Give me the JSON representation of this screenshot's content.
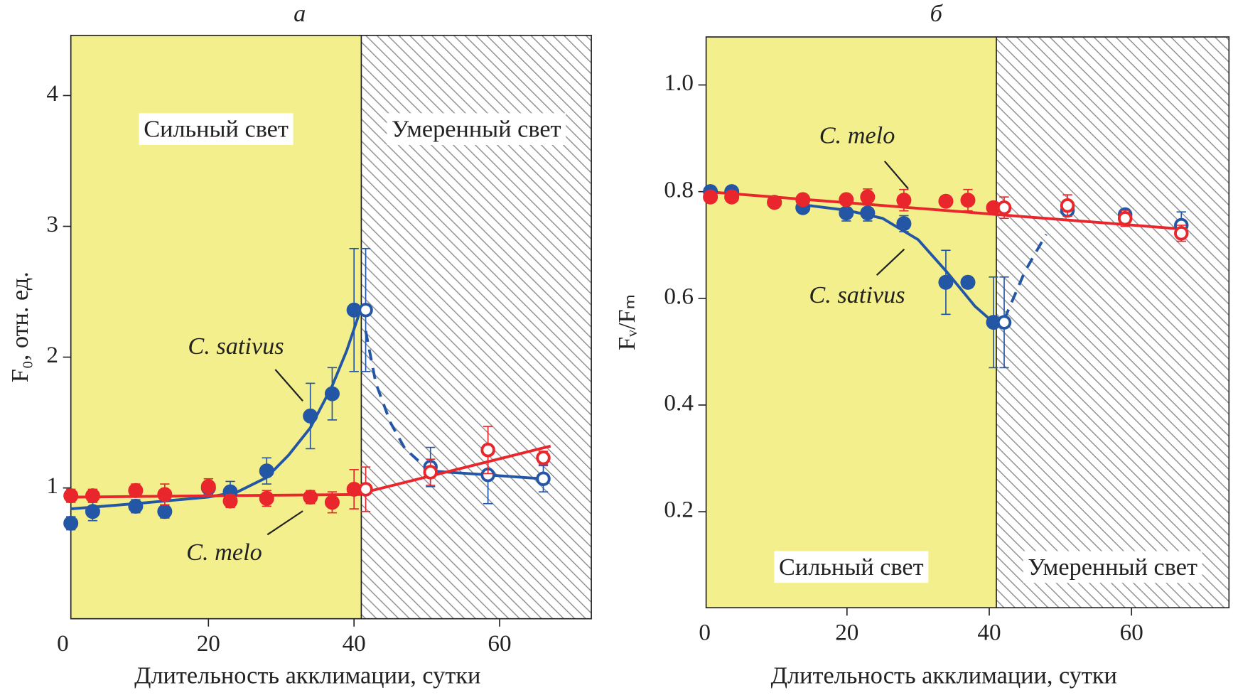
{
  "chart_data": [
    {
      "type": "scatter",
      "title": "а",
      "x_label": "Длительность акклимации, сутки",
      "y_label": "F₀, отн. ед.",
      "xlim": [
        1.1,
        72.6
      ],
      "ylim": [
        0,
        4.46
      ],
      "xticks": [
        0,
        20,
        40,
        60
      ],
      "yticks": [
        1,
        2,
        3,
        4
      ],
      "light_switch_x": 41,
      "regions": [
        "Сильный свет",
        "Умеренный свет"
      ],
      "region_color": "#f3ef8c",
      "series": [
        {
          "name": "C. sativus",
          "color": "#2456a6",
          "x": [
            1.1,
            4.1,
            10,
            14,
            20,
            23,
            28,
            34,
            37,
            40,
            41.6,
            50.5,
            58.4,
            66
          ],
          "values": [
            0.73,
            0.82,
            0.86,
            0.82,
            1.0,
            0.97,
            1.13,
            1.55,
            1.72,
            2.36,
            2.36,
            1.16,
            1.1,
            1.07
          ],
          "errors": [
            0.05,
            0.07,
            0.05,
            0.05,
            0.05,
            0.08,
            0.1,
            0.25,
            0.2,
            0.47,
            0.47,
            0.15,
            0.22,
            0.1
          ],
          "fits": [
            {
              "style": "solid",
              "x": [
                1.1,
                10,
                20,
                24,
                28,
                31,
                34,
                37,
                39,
                41
              ],
              "values": [
                0.84,
                0.88,
                0.93,
                0.97,
                1.08,
                1.25,
                1.46,
                1.78,
                2.05,
                2.38
              ]
            },
            {
              "style": "dashed",
              "x": [
                41.6,
                43,
                45,
                47,
                49
              ],
              "values": [
                2.2,
                1.8,
                1.5,
                1.3,
                1.2
              ]
            },
            {
              "style": "solid",
              "x": [
                50.5,
                66
              ],
              "values": [
                1.13,
                1.07
              ]
            }
          ]
        },
        {
          "name": "C. melo",
          "color": "#e8262b",
          "x": [
            1.1,
            4.1,
            10,
            14,
            20,
            23,
            28,
            34,
            37,
            40,
            41.6,
            50.5,
            58.4,
            66
          ],
          "values": [
            0.94,
            0.94,
            0.98,
            0.95,
            1.01,
            0.9,
            0.92,
            0.93,
            0.89,
            0.99,
            0.99,
            1.12,
            1.29,
            1.23
          ],
          "errors": [
            0.05,
            0.05,
            0.05,
            0.08,
            0.06,
            0.05,
            0.06,
            0.05,
            0.08,
            0.15,
            0.17,
            0.1,
            0.18,
            0.05
          ],
          "fits": [
            {
              "style": "solid",
              "x": [
                1.1,
                41
              ],
              "values": [
                0.93,
                0.95
              ]
            },
            {
              "style": "solid",
              "x": [
                41,
                67
              ],
              "values": [
                0.96,
                1.32
              ]
            }
          ]
        }
      ]
    },
    {
      "type": "scatter",
      "title": "б",
      "x_label": "Длительность акклимации, сутки",
      "y_label": "Fᵥ/Fₘ",
      "xlim": [
        0.2,
        73.7
      ],
      "ylim": [
        0.02,
        1.09
      ],
      "xticks": [
        0,
        20,
        40,
        60
      ],
      "yticks": [
        0.2,
        0.4,
        0.6,
        0.8,
        {
          "value": 1,
          "label": "1.0"
        }
      ],
      "light_switch_x": 41,
      "regions": [
        "Сильный свет",
        "Умеренный свет"
      ],
      "region_color": "#f3ef8c",
      "series": [
        {
          "name": "C. sativus",
          "color": "#2456a6",
          "x": [
            0.8,
            3.8,
            9.8,
            13.8,
            19.9,
            22.9,
            28,
            33.9,
            37,
            40.6,
            42.1,
            51,
            59.1,
            67
          ],
          "values": [
            0.8,
            0.8,
            0.78,
            0.77,
            0.76,
            0.76,
            0.74,
            0.63,
            0.63,
            0.555,
            0.555,
            0.765,
            0.757,
            0.737
          ],
          "errors": [
            0.01,
            0.01,
            0.01,
            0.01,
            0.015,
            0.015,
            0.015,
            0.06,
            0.01,
            0.085,
            0.085,
            0.01,
            0.01,
            0.025
          ],
          "fits": [
            {
              "style": "solid",
              "x": [
                14,
                20,
                25,
                30,
                34,
                38,
                41
              ],
              "values": [
                0.775,
                0.765,
                0.75,
                0.71,
                0.65,
                0.585,
                0.55
              ]
            },
            {
              "style": "dashed",
              "x": [
                42.1,
                45,
                48
              ],
              "values": [
                0.56,
                0.65,
                0.72
              ]
            }
          ]
        },
        {
          "name": "C. melo",
          "color": "#e8262b",
          "x": [
            0.8,
            3.8,
            9.8,
            13.8,
            19.9,
            22.9,
            28,
            33.9,
            37,
            40.6,
            42.1,
            51,
            59.1,
            67
          ],
          "values": [
            0.79,
            0.79,
            0.78,
            0.785,
            0.785,
            0.79,
            0.784,
            0.782,
            0.784,
            0.77,
            0.77,
            0.774,
            0.75,
            0.722
          ],
          "errors": [
            0.01,
            0.01,
            0.01,
            0.01,
            0.01,
            0.015,
            0.02,
            0.01,
            0.02,
            0.01,
            0.02,
            0.02,
            0.015,
            0.015
          ],
          "fits": [
            {
              "style": "solid",
              "x": [
                0.2,
                67
              ],
              "values": [
                0.8,
                0.73
              ]
            }
          ]
        }
      ]
    }
  ]
}
